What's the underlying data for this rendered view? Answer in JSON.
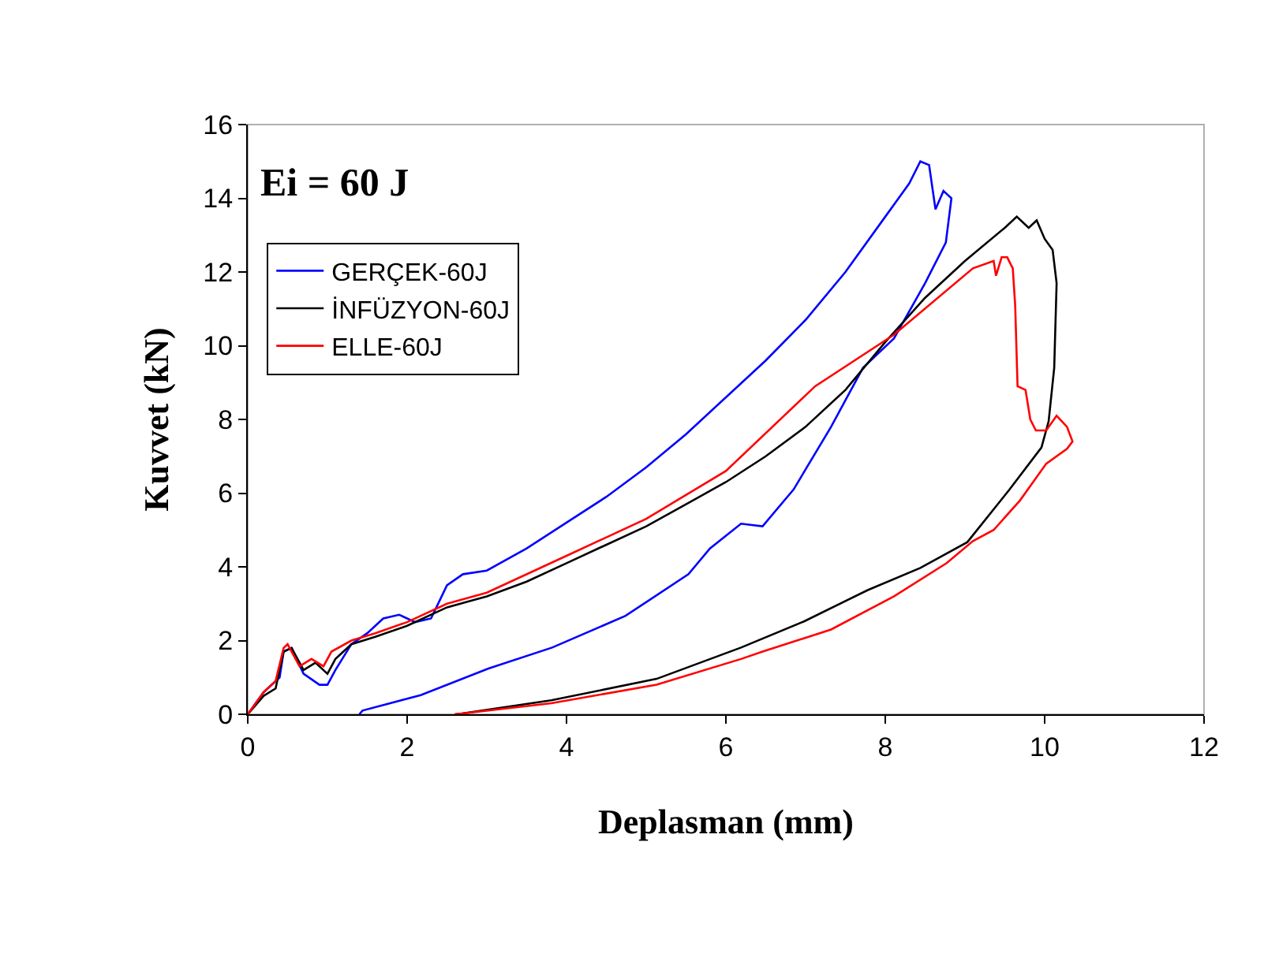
{
  "chart_data": {
    "type": "line",
    "xlabel": "Deplasman (mm)",
    "ylabel": "Kuvvet (kN)",
    "annotations": [
      "Ei = 60 J"
    ],
    "xlim": [
      0,
      12
    ],
    "xticks": [
      0,
      2,
      4,
      6,
      8,
      10,
      12
    ],
    "ylim": [
      0,
      16
    ],
    "yticks": [
      0,
      2,
      4,
      6,
      8,
      10,
      12,
      14,
      16
    ],
    "grid": false,
    "legend": "top left",
    "marker": "none",
    "line_style": "solid",
    "series": [
      {
        "name": "GERÇEK-60J",
        "color": "#0000ff",
        "x": [
          0,
          0.2,
          0.4,
          0.45,
          0.55,
          0.7,
          0.9,
          1.0,
          1.1,
          1.3,
          1.5,
          1.7,
          1.9,
          2.1,
          2.3,
          2.5,
          2.7,
          3.0,
          3.5,
          4.0,
          4.5,
          5.0,
          5.5,
          6.0,
          6.5,
          7.0,
          7.5,
          8.0,
          8.3,
          8.44,
          8.55,
          8.63,
          8.73,
          8.83,
          8.76,
          8.5,
          8.11,
          7.72,
          7.32,
          6.85,
          6.46,
          6.19,
          5.8,
          5.53,
          4.74,
          3.82,
          3.02,
          2.17,
          1.44,
          1.4
        ],
        "values": [
          0,
          0.6,
          1.0,
          1.7,
          1.8,
          1.1,
          0.8,
          0.8,
          1.2,
          1.9,
          2.2,
          2.6,
          2.7,
          2.5,
          2.6,
          3.5,
          3.8,
          3.9,
          4.5,
          5.2,
          5.9,
          6.7,
          7.6,
          8.6,
          9.6,
          10.7,
          12.0,
          13.5,
          14.4,
          15.0,
          14.9,
          13.7,
          14.2,
          14.0,
          12.8,
          11.7,
          10.2,
          9.4,
          7.8,
          6.1,
          5.1,
          5.17,
          4.5,
          3.8,
          2.67,
          1.81,
          1.24,
          0.52,
          0.1,
          0
        ]
      },
      {
        "name": "İNFÜZYON-60J",
        "color": "#000000",
        "x": [
          0,
          0.2,
          0.35,
          0.45,
          0.55,
          0.7,
          0.85,
          1.0,
          1.1,
          1.3,
          1.6,
          2.0,
          2.5,
          3.0,
          3.5,
          4.0,
          4.5,
          5.0,
          5.5,
          6.0,
          6.5,
          7.0,
          7.5,
          8.0,
          8.5,
          9.0,
          9.5,
          9.65,
          9.8,
          9.9,
          10.0,
          10.1,
          10.15,
          10.12,
          10.05,
          9.96,
          9.56,
          9.03,
          8.44,
          7.78,
          6.98,
          6.19,
          5.13,
          3.81,
          2.69,
          2.6
        ],
        "values": [
          0,
          0.5,
          0.7,
          1.7,
          1.8,
          1.2,
          1.4,
          1.1,
          1.5,
          1.9,
          2.1,
          2.4,
          2.9,
          3.2,
          3.6,
          4.1,
          4.6,
          5.1,
          5.7,
          6.3,
          7.0,
          7.8,
          8.8,
          10.1,
          11.3,
          12.3,
          13.2,
          13.5,
          13.2,
          13.4,
          12.9,
          12.6,
          11.7,
          9.4,
          7.95,
          7.24,
          6.1,
          4.67,
          3.97,
          3.37,
          2.52,
          1.81,
          0.96,
          0.38,
          0.02,
          0
        ]
      },
      {
        "name": "ELLE-60J",
        "color": "#ff0000",
        "x": [
          0,
          0.2,
          0.35,
          0.45,
          0.5,
          0.65,
          0.8,
          0.95,
          1.05,
          1.3,
          1.6,
          2.0,
          2.5,
          3.0,
          4.0,
          5.0,
          6.0,
          7.12,
          8.11,
          9.1,
          9.36,
          9.39,
          9.46,
          9.53,
          9.6,
          9.63,
          9.66,
          9.76,
          9.82,
          9.89,
          10.02,
          10.15,
          10.28,
          10.35,
          10.28,
          10.02,
          9.69,
          9.36,
          9.1,
          8.77,
          8.11,
          7.32,
          6.46,
          6.19,
          5.13,
          3.81,
          2.69,
          2.6
        ],
        "values": [
          0,
          0.6,
          0.9,
          1.8,
          1.9,
          1.3,
          1.5,
          1.3,
          1.7,
          2.0,
          2.2,
          2.5,
          3.0,
          3.3,
          4.3,
          5.3,
          6.6,
          8.9,
          10.3,
          12.1,
          12.3,
          11.9,
          12.4,
          12.4,
          12.1,
          11.1,
          8.9,
          8.8,
          8.0,
          7.7,
          7.7,
          8.1,
          7.8,
          7.4,
          7.2,
          6.8,
          5.8,
          5.0,
          4.7,
          4.1,
          3.2,
          2.3,
          1.7,
          1.5,
          0.8,
          0.3,
          0.02,
          0
        ]
      }
    ]
  }
}
